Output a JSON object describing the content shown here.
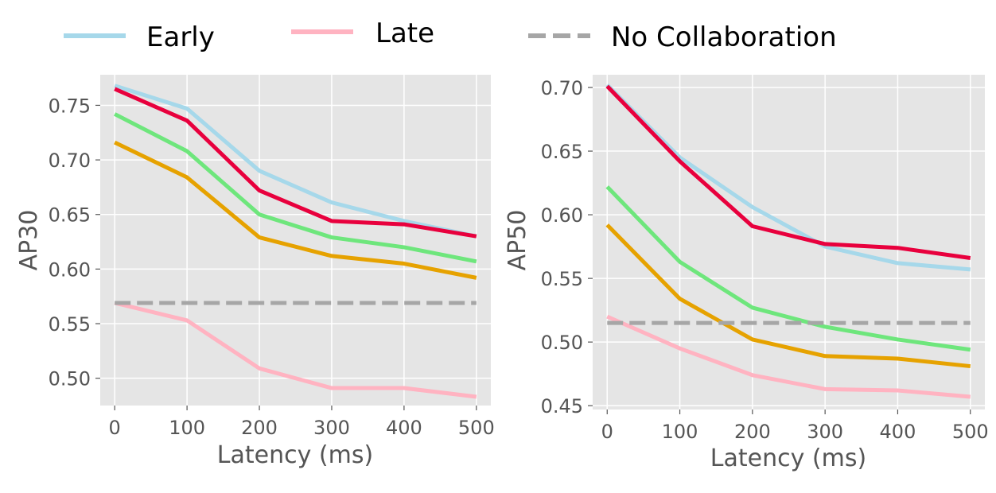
{
  "legend": {
    "placement": "top",
    "items": [
      {
        "label": "Early",
        "color": "#a6d8ea",
        "dashed": false
      },
      {
        "label": "Late",
        "color": "#ffb3c1",
        "dashed": false
      },
      {
        "label": "No Collaboration",
        "color": "#a6a6a6",
        "dashed": true
      }
    ]
  },
  "chart_data": [
    {
      "type": "line",
      "xlabel": "Latency (ms)",
      "ylabel": "AP30",
      "x": [
        0,
        100,
        200,
        300,
        400,
        500
      ],
      "xticks": [
        "0",
        "100",
        "200",
        "300",
        "400",
        "500"
      ],
      "yticks": [
        "0.50",
        "0.55",
        "0.60",
        "0.65",
        "0.70",
        "0.75"
      ],
      "xlim": [
        -20,
        520
      ],
      "ylim": [
        0.475,
        0.778
      ],
      "grid": true,
      "series": [
        {
          "name": "Early",
          "color": "#a6d8ea",
          "values": [
            0.768,
            0.747,
            0.69,
            0.661,
            0.644,
            0.63
          ]
        },
        {
          "name": "",
          "color": "#6ee67c",
          "values": [
            0.742,
            0.708,
            0.65,
            0.629,
            0.62,
            0.607
          ]
        },
        {
          "name": "",
          "color": "#e6a200",
          "values": [
            0.716,
            0.684,
            0.629,
            0.612,
            0.605,
            0.592
          ]
        },
        {
          "name": "",
          "color": "#e8003d",
          "values": [
            0.765,
            0.736,
            0.672,
            0.644,
            0.641,
            0.63
          ]
        },
        {
          "name": "Late",
          "color": "#ffb3c1",
          "values": [
            0.569,
            0.553,
            0.509,
            0.491,
            0.491,
            0.483
          ]
        },
        {
          "name": "No Collaboration",
          "color": "#a6a6a6",
          "dashed": true,
          "values": [
            0.569,
            0.569,
            0.569,
            0.569,
            0.569,
            0.569
          ]
        }
      ]
    },
    {
      "type": "line",
      "xlabel": "Latency (ms)",
      "ylabel": "AP50",
      "x": [
        0,
        100,
        200,
        300,
        400,
        500
      ],
      "xticks": [
        "0",
        "100",
        "200",
        "300",
        "400",
        "500"
      ],
      "yticks": [
        "0.45",
        "0.50",
        "0.55",
        "0.60",
        "0.65",
        "0.70"
      ],
      "xlim": [
        -20,
        520
      ],
      "ylim": [
        0.447,
        0.71
      ],
      "grid": true,
      "series": [
        {
          "name": "Early",
          "color": "#a6d8ea",
          "values": [
            0.702,
            0.645,
            0.606,
            0.575,
            0.562,
            0.557
          ]
        },
        {
          "name": "",
          "color": "#6ee67c",
          "values": [
            0.622,
            0.563,
            0.527,
            0.512,
            0.502,
            0.494
          ]
        },
        {
          "name": "",
          "color": "#e6a200",
          "values": [
            0.592,
            0.534,
            0.502,
            0.489,
            0.487,
            0.481
          ]
        },
        {
          "name": "",
          "color": "#e8003d",
          "values": [
            0.701,
            0.642,
            0.591,
            0.577,
            0.574,
            0.566
          ]
        },
        {
          "name": "Late",
          "color": "#ffb3c1",
          "values": [
            0.52,
            0.495,
            0.474,
            0.463,
            0.462,
            0.457
          ]
        },
        {
          "name": "No Collaboration",
          "color": "#a6a6a6",
          "dashed": true,
          "values": [
            0.515,
            0.515,
            0.515,
            0.515,
            0.515,
            0.515
          ]
        }
      ]
    }
  ]
}
